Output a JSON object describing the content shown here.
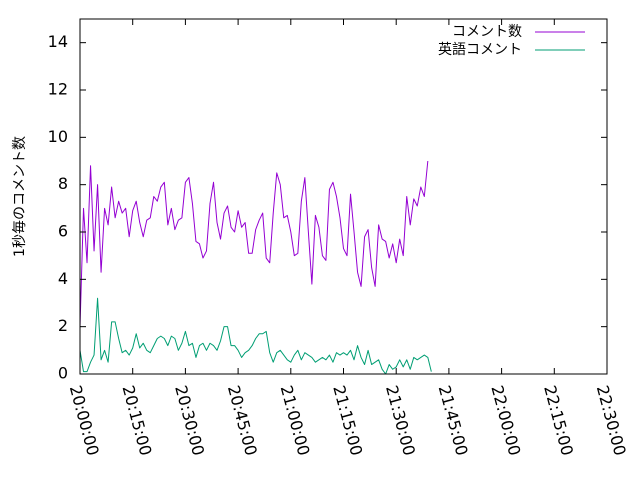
{
  "chart_data": {
    "type": "line",
    "title": "",
    "xlabel": "",
    "ylabel": "1秒毎のコメント数",
    "ylim": [
      0,
      15
    ],
    "yticks": [
      0,
      2,
      4,
      6,
      8,
      10,
      12,
      14
    ],
    "xlim": [
      "20:00:00",
      "22:30:00"
    ],
    "xticks": [
      "20:00:00",
      "20:15:00",
      "20:30:00",
      "20:45:00",
      "21:00:00",
      "21:15:00",
      "21:30:00",
      "21:45:00",
      "22:00:00",
      "22:15:00",
      "22:30:00"
    ],
    "grid": false,
    "legend_position": "top-right",
    "x_start": "20:00:00",
    "x_step": "00:01:00",
    "series": [
      {
        "name": "コメント数",
        "color": "#9400d3",
        "values": [
          2.0,
          7.0,
          4.7,
          8.8,
          5.2,
          8.0,
          4.3,
          7.0,
          6.3,
          7.9,
          6.6,
          7.3,
          6.8,
          7.0,
          5.8,
          6.9,
          7.3,
          6.4,
          5.8,
          6.5,
          6.6,
          7.5,
          7.3,
          7.9,
          8.1,
          6.3,
          7.0,
          6.1,
          6.5,
          6.6,
          8.1,
          8.3,
          7.2,
          5.6,
          5.5,
          4.9,
          5.2,
          7.2,
          8.1,
          6.4,
          5.7,
          6.8,
          7.1,
          6.2,
          6.0,
          6.9,
          6.2,
          6.4,
          5.1,
          5.1,
          6.1,
          6.5,
          6.8,
          4.9,
          4.7,
          6.8,
          8.5,
          8.0,
          6.6,
          6.7,
          6.0,
          5.0,
          5.1,
          7.3,
          8.3,
          6.0,
          3.8,
          6.7,
          6.2,
          5.0,
          4.8,
          7.8,
          8.1,
          7.5,
          6.6,
          5.3,
          5.0,
          7.6,
          6.0,
          4.3,
          3.7,
          5.8,
          6.1,
          4.5,
          3.7,
          6.3,
          5.7,
          5.6,
          4.9,
          5.5,
          4.7,
          5.7,
          5.0,
          7.5,
          6.3,
          7.4,
          7.1,
          7.9,
          7.5,
          9.0
        ]
      },
      {
        "name": "英語コメント",
        "color": "#009e73",
        "values": [
          1.0,
          0.1,
          0.1,
          0.5,
          0.8,
          3.2,
          0.6,
          1.0,
          0.5,
          2.2,
          2.2,
          1.5,
          0.9,
          1.0,
          0.8,
          1.1,
          1.7,
          1.1,
          1.3,
          1.0,
          0.9,
          1.2,
          1.5,
          1.6,
          1.5,
          1.2,
          1.6,
          1.5,
          1.0,
          1.3,
          1.8,
          1.2,
          1.3,
          0.7,
          1.2,
          1.3,
          1.0,
          1.3,
          1.2,
          1.0,
          1.4,
          2.0,
          2.0,
          1.2,
          1.2,
          1.0,
          0.7,
          0.9,
          1.0,
          1.2,
          1.5,
          1.7,
          1.7,
          1.8,
          0.9,
          0.5,
          0.9,
          1.0,
          0.8,
          0.6,
          0.5,
          0.8,
          1.0,
          0.6,
          0.9,
          0.8,
          0.7,
          0.5,
          0.6,
          0.7,
          0.6,
          0.8,
          0.5,
          0.9,
          0.8,
          0.9,
          0.8,
          1.0,
          0.6,
          1.2,
          0.7,
          0.4,
          1.0,
          0.4,
          0.5,
          0.6,
          0.2,
          0.0,
          0.4,
          0.2,
          0.3,
          0.6,
          0.3,
          0.6,
          0.2,
          0.7,
          0.6,
          0.7,
          0.8,
          0.7,
          0.1
        ]
      }
    ]
  }
}
